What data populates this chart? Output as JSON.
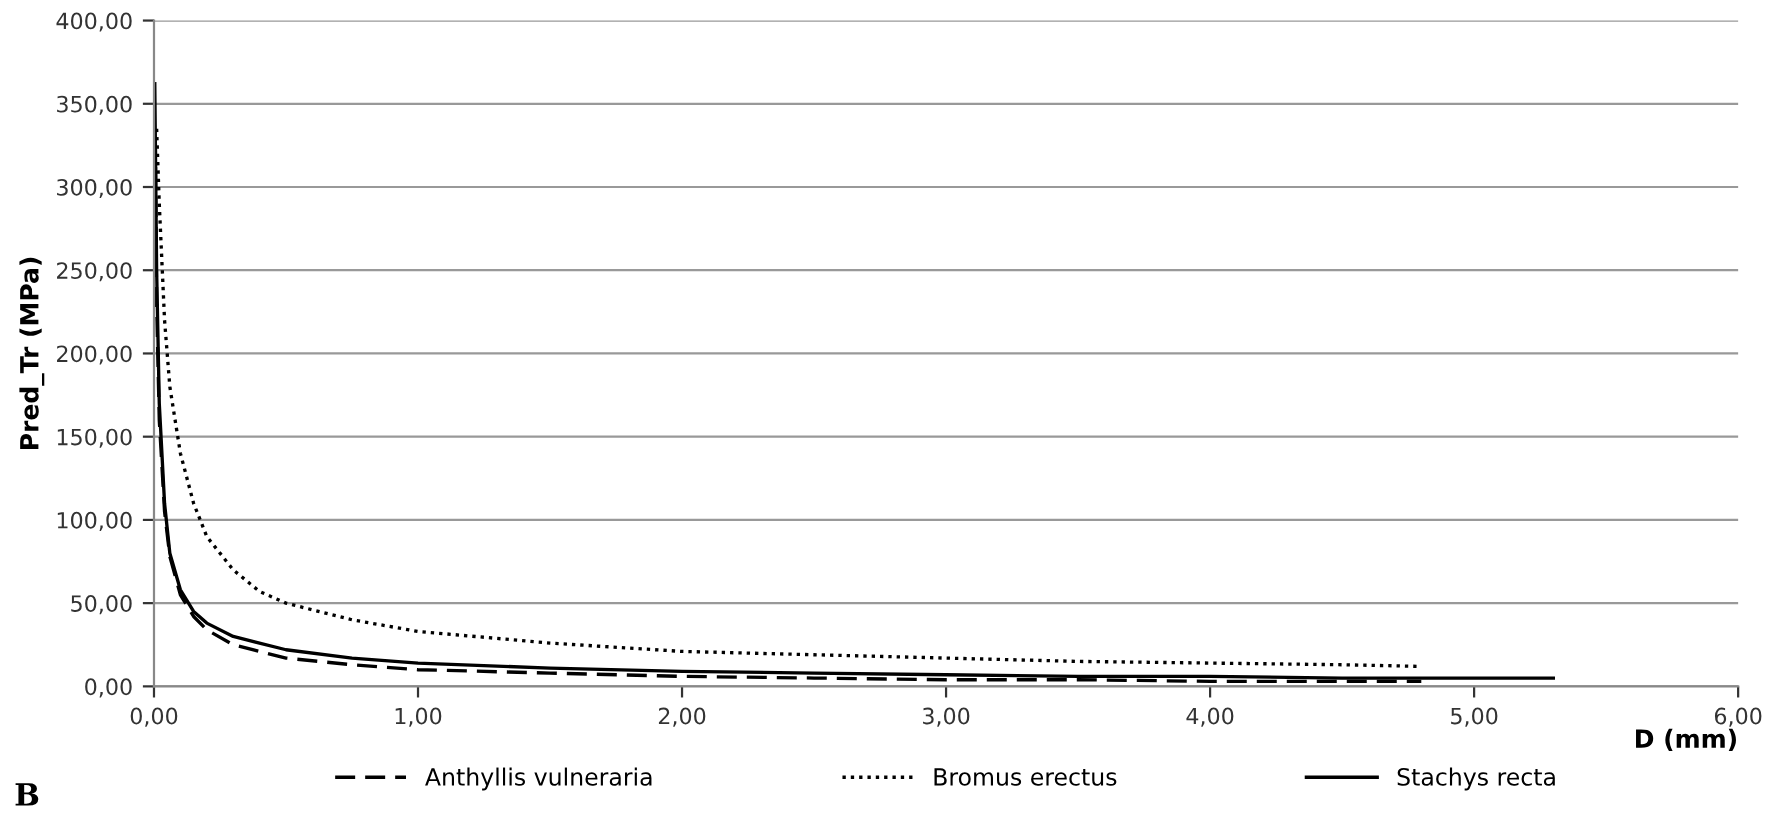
{
  "chart_data": {
    "type": "line",
    "xlabel": "D (mm)",
    "ylabel": "Pred_Tr (MPa)",
    "annotations": [
      "B"
    ],
    "xlim": [
      0,
      6
    ],
    "xticks": [
      {
        "value": 0,
        "label": "0,00"
      },
      {
        "value": 1,
        "label": "1,00"
      },
      {
        "value": 2,
        "label": "2,00"
      },
      {
        "value": 3,
        "label": "3,00"
      },
      {
        "value": 4,
        "label": "4,00"
      },
      {
        "value": 5,
        "label": "5,00"
      },
      {
        "value": 6,
        "label": "6,00"
      }
    ],
    "ylim": [
      0,
      400
    ],
    "yticks": [
      {
        "value": 0,
        "label": "0,00"
      },
      {
        "value": 50,
        "label": "50,00"
      },
      {
        "value": 100,
        "label": "100,00"
      },
      {
        "value": 150,
        "label": "150,00"
      },
      {
        "value": 200,
        "label": "200,00"
      },
      {
        "value": 250,
        "label": "250,00"
      },
      {
        "value": 300,
        "label": "300,00"
      },
      {
        "value": 350,
        "label": "350,00"
      },
      {
        "value": 400,
        "label": "400,00"
      }
    ],
    "grid": "y",
    "legend": "bottom",
    "marker": "none",
    "series": [
      {
        "name": "Anthyllis vulneraria",
        "color": "#000000",
        "line_style": "dashed",
        "x": [
          0.005,
          0.01,
          0.02,
          0.04,
          0.06,
          0.1,
          0.15,
          0.2,
          0.3,
          0.5,
          0.75,
          1,
          1.5,
          2,
          2.5,
          3,
          3.5,
          4,
          4.5,
          4.8
        ],
        "values": [
          330,
          230,
          160,
          105,
          78,
          55,
          42,
          34,
          25,
          17,
          13,
          10,
          8,
          6,
          5,
          4,
          4,
          3,
          3,
          3
        ]
      },
      {
        "name": "Bromus erectus",
        "color": "#000000",
        "line_style": "dotted",
        "x": [
          0.01,
          0.02,
          0.04,
          0.06,
          0.1,
          0.15,
          0.2,
          0.3,
          0.4,
          0.5,
          0.75,
          1,
          1.5,
          2,
          2.5,
          3,
          3.5,
          4,
          4.5,
          4.8
        ],
        "values": [
          335,
          290,
          220,
          180,
          140,
          110,
          90,
          70,
          57,
          50,
          40,
          33,
          26,
          21,
          19,
          17,
          15,
          14,
          13,
          12
        ]
      },
      {
        "name": "Stachys recta",
        "color": "#000000",
        "line_style": "solid",
        "x": [
          0.003,
          0.01,
          0.02,
          0.04,
          0.06,
          0.1,
          0.15,
          0.2,
          0.3,
          0.5,
          0.75,
          1,
          1.5,
          2,
          2.5,
          3,
          3.5,
          4,
          4.5,
          5,
          5.3
        ],
        "values": [
          362,
          250,
          170,
          110,
          80,
          58,
          45,
          38,
          30,
          22,
          17,
          14,
          11,
          9,
          8,
          7,
          6,
          6,
          5,
          5,
          5
        ]
      }
    ]
  }
}
